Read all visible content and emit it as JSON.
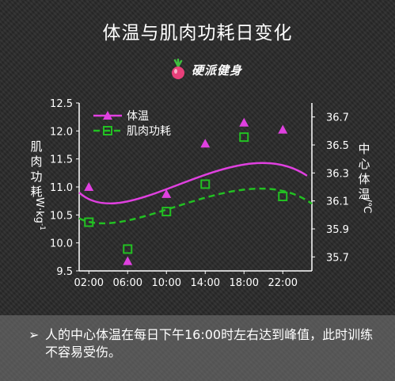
{
  "title": "体温与肌肉功耗日变化",
  "logo": {
    "text": "硬派健身",
    "icon": "radish-logo-icon"
  },
  "colors": {
    "temp": "#e040e0",
    "muscle": "#22c022",
    "axis": "#ffffff",
    "text": "#ffffff"
  },
  "chart_data": {
    "type": "line",
    "x_labels": [
      "02:00",
      "06:00",
      "10:00",
      "14:00",
      "18:00",
      "22:00"
    ],
    "y_left": {
      "label_chars": [
        "肌",
        "肉",
        "功",
        "耗"
      ],
      "unit": "W·kg",
      "unit_sup": "-1",
      "range": [
        9.5,
        12.5
      ],
      "ticks": [
        "9.5",
        "10.0",
        "10.5",
        "11.0",
        "11.5",
        "12.0",
        "12.5"
      ]
    },
    "y_right": {
      "label_chars": [
        "中",
        "心",
        "体",
        "温"
      ],
      "unit": "/℃",
      "range": [
        35.6,
        36.8
      ],
      "ticks": [
        "35.7",
        "35.9",
        "36.1",
        "36.3",
        "36.5",
        "36.7"
      ]
    },
    "legend": {
      "position": "top-left"
    },
    "series": [
      {
        "name": "体温",
        "axis": "right",
        "marker": "triangle",
        "line": "solid",
        "points": [
          [
            2,
            36.2
          ],
          [
            6,
            35.67
          ],
          [
            10,
            36.15
          ],
          [
            14,
            36.51
          ],
          [
            18,
            36.66
          ],
          [
            22,
            36.61
          ]
        ],
        "curve": [
          [
            1,
            36.16
          ],
          [
            6,
            35.84
          ],
          [
            17,
            36.63
          ],
          [
            24.5,
            36.28
          ]
        ]
      },
      {
        "name": "肌肉功耗",
        "axis": "left",
        "marker": "square",
        "line": "dashed",
        "points": [
          [
            2,
            10.37
          ],
          [
            6,
            9.89
          ],
          [
            10,
            10.56
          ],
          [
            14,
            11.05
          ],
          [
            18,
            11.89
          ],
          [
            22,
            10.83
          ]
        ],
        "curve": [
          [
            1,
            10.44
          ],
          [
            6.5,
            9.96
          ],
          [
            17.8,
            11.59
          ],
          [
            25,
            10.7
          ]
        ]
      }
    ]
  },
  "footer": {
    "bullet": "➢",
    "text": "人的中心体温在每日下午16:00时左右达到峰值，此时训练不容易受伤。"
  }
}
